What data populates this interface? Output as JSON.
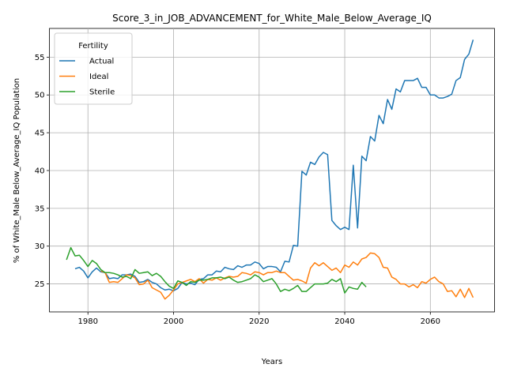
{
  "chart_data": {
    "type": "line",
    "title": "Score_3_in_JOB_ADVANCEMENT_for_White_Male_Below_Average_IQ",
    "xlabel": "Years",
    "ylabel": "% of White_Male Below_Average_IQ Population",
    "xlim": [
      1971,
      2075
    ],
    "ylim": [
      21.3,
      58.8
    ],
    "x_ticks": [
      1980,
      2000,
      2020,
      2040,
      2060
    ],
    "y_ticks": [
      25,
      30,
      35,
      40,
      45,
      50,
      55
    ],
    "grid": true,
    "legend": {
      "title": "Fertility",
      "placement": "top-left"
    },
    "colors": {
      "Actual": "#1f77b4",
      "Ideal": "#ff7f0e",
      "Sterile": "#2ca02c"
    },
    "series": [
      {
        "name": "Actual",
        "x": [
          1977,
          1978,
          1979,
          1980,
          1981,
          1982,
          1983,
          1984,
          1985,
          1986,
          1987,
          1988,
          1989,
          1990,
          1991,
          1992,
          1993,
          1994,
          1995,
          1996,
          1997,
          1998,
          1999,
          2000,
          2001,
          2002,
          2003,
          2004,
          2005,
          2006,
          2007,
          2008,
          2009,
          2010,
          2011,
          2012,
          2013,
          2014,
          2015,
          2016,
          2017,
          2018,
          2019,
          2020,
          2021,
          2022,
          2023,
          2024,
          2025,
          2026,
          2027,
          2028,
          2029,
          2030,
          2031,
          2032,
          2033,
          2034,
          2035,
          2036,
          2037,
          2038,
          2039,
          2040,
          2041,
          2042,
          2043,
          2044,
          2045,
          2046,
          2047,
          2048,
          2049,
          2050,
          2051,
          2052,
          2053,
          2054,
          2055,
          2056,
          2057,
          2058,
          2059,
          2060,
          2061,
          2062,
          2063,
          2064,
          2065,
          2066,
          2067,
          2068,
          2069,
          2070
        ],
        "y": [
          27.0,
          27.2,
          26.7,
          25.8,
          26.6,
          27.1,
          26.6,
          26.5,
          25.7,
          25.8,
          25.7,
          26.2,
          26.2,
          26.3,
          26.0,
          25.2,
          25.3,
          25.6,
          25.2,
          25.0,
          24.5,
          24.2,
          24.3,
          24.1,
          24.4,
          25.2,
          25.0,
          25.1,
          24.9,
          25.6,
          25.7,
          26.2,
          26.2,
          26.7,
          26.6,
          27.2,
          27.0,
          26.9,
          27.4,
          27.2,
          27.5,
          27.5,
          27.9,
          27.7,
          27.0,
          27.3,
          27.3,
          27.2,
          26.6,
          28.0,
          27.9,
          30.1,
          30.0,
          39.9,
          39.4,
          41.1,
          40.8,
          41.8,
          42.4,
          42.1,
          33.4,
          32.7,
          32.2,
          32.5,
          32.2,
          40.7,
          32.4,
          41.9,
          41.3,
          44.5,
          43.9,
          47.3,
          46.2,
          49.4,
          48.1,
          50.8,
          50.4,
          51.9,
          51.9,
          51.9,
          52.2,
          51.0,
          51.0,
          50.0,
          50.0,
          49.6,
          49.6,
          49.8,
          50.1,
          51.9,
          52.3,
          54.7,
          55.4,
          57.3
        ]
      },
      {
        "name": "Ideal",
        "x": [
          1983,
          1984,
          1985,
          1986,
          1987,
          1988,
          1989,
          1990,
          1991,
          1992,
          1993,
          1994,
          1995,
          1996,
          1997,
          1998,
          1999,
          2000,
          2001,
          2002,
          2003,
          2004,
          2005,
          2006,
          2007,
          2008,
          2009,
          2010,
          2011,
          2012,
          2013,
          2014,
          2015,
          2016,
          2017,
          2018,
          2019,
          2020,
          2021,
          2022,
          2023,
          2024,
          2025,
          2026,
          2027,
          2028,
          2029,
          2030,
          2031,
          2032,
          2033,
          2034,
          2035,
          2036,
          2037,
          2038,
          2039,
          2040,
          2041,
          2042,
          2043,
          2044,
          2045,
          2046,
          2047,
          2048,
          2049,
          2050,
          2051,
          2052,
          2053,
          2054,
          2055,
          2056,
          2057,
          2058,
          2059,
          2060,
          2061,
          2062,
          2063,
          2064,
          2065,
          2066,
          2067,
          2068,
          2069,
          2070
        ],
        "y": [
          26.7,
          26.5,
          25.2,
          25.3,
          25.2,
          25.7,
          26.2,
          26.1,
          25.8,
          24.9,
          25.0,
          25.5,
          24.5,
          24.2,
          23.9,
          23.0,
          23.5,
          24.2,
          25.0,
          25.2,
          25.4,
          25.6,
          25.3,
          25.7,
          25.1,
          25.6,
          25.5,
          25.8,
          25.5,
          25.8,
          26.0,
          25.9,
          26.0,
          26.5,
          26.4,
          26.2,
          26.6,
          26.5,
          26.2,
          26.5,
          26.5,
          26.7,
          26.5,
          26.5,
          26.0,
          25.5,
          25.6,
          25.4,
          25.1,
          27.1,
          27.8,
          27.4,
          27.8,
          27.3,
          26.8,
          27.1,
          26.5,
          27.5,
          27.2,
          27.9,
          27.5,
          28.3,
          28.5,
          29.1,
          29.0,
          28.5,
          27.2,
          27.1,
          25.9,
          25.6,
          25.0,
          25.0,
          24.6,
          24.9,
          24.5,
          25.3,
          25.1,
          25.6,
          25.9,
          25.3,
          25.0,
          24.0,
          24.1,
          23.3,
          24.3,
          23.2,
          24.4,
          23.2
        ]
      },
      {
        "name": "Sterile",
        "x": [
          1975,
          1976,
          1977,
          1978,
          1979,
          1980,
          1981,
          1982,
          1983,
          1984,
          1985,
          1986,
          1987,
          1988,
          1989,
          1990,
          1991,
          1992,
          1993,
          1994,
          1995,
          1996,
          1997,
          1998,
          1999,
          2000,
          2001,
          2002,
          2003,
          2004,
          2005,
          2006,
          2007,
          2008,
          2009,
          2010,
          2011,
          2012,
          2013,
          2014,
          2015,
          2016,
          2017,
          2018,
          2019,
          2020,
          2021,
          2022,
          2023,
          2024,
          2025,
          2026,
          2027,
          2028,
          2029,
          2030,
          2031,
          2032,
          2033,
          2034,
          2035,
          2036,
          2037,
          2038,
          2039,
          2040,
          2041,
          2042,
          2043,
          2044,
          2045
        ],
        "y": [
          28.2,
          29.8,
          28.7,
          28.8,
          28.1,
          27.3,
          28.1,
          27.7,
          26.9,
          26.5,
          26.5,
          26.4,
          26.2,
          25.9,
          26.0,
          25.7,
          26.9,
          26.4,
          26.5,
          26.6,
          26.1,
          26.4,
          26.0,
          25.3,
          24.7,
          24.4,
          25.4,
          25.2,
          24.8,
          25.3,
          25.2,
          25.5,
          25.5,
          25.6,
          25.8,
          25.8,
          25.9,
          25.7,
          25.9,
          25.5,
          25.2,
          25.3,
          25.5,
          25.7,
          26.2,
          25.9,
          25.3,
          25.5,
          25.7,
          25.0,
          24.0,
          24.3,
          24.1,
          24.4,
          24.8,
          24.0,
          24.0,
          24.5,
          25.0,
          25.0,
          25.0,
          25.1,
          25.6,
          25.3,
          25.7,
          23.8,
          24.6,
          24.4,
          24.3,
          25.2,
          24.6
        ]
      }
    ]
  }
}
